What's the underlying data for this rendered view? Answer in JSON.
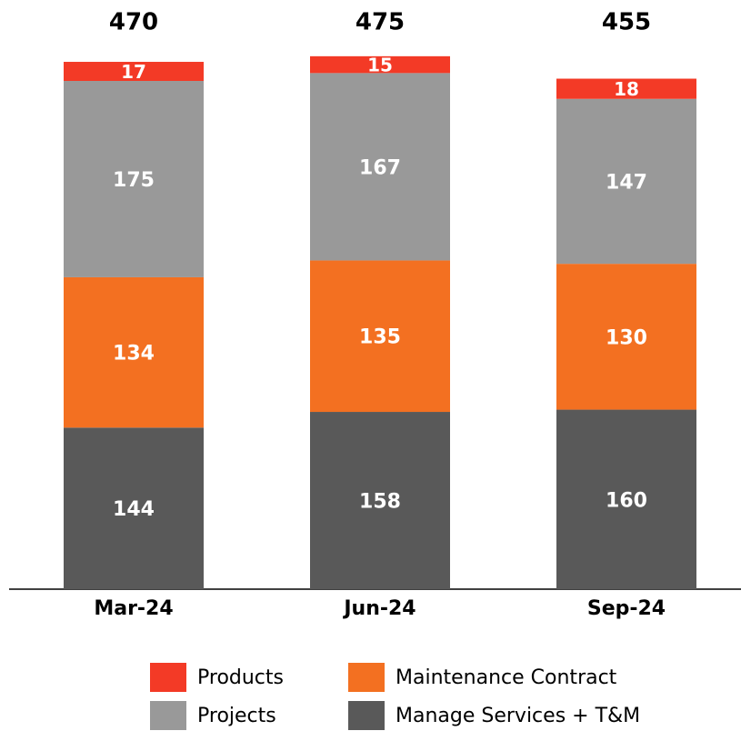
{
  "chart_data": {
    "type": "stacked_bar",
    "categories": [
      "Mar-24",
      "Jun-24",
      "Sep-24"
    ],
    "totals": [
      470,
      475,
      455
    ],
    "series": [
      {
        "name": "Manage Services + T&M",
        "color": "#595959",
        "values": [
          144,
          158,
          160
        ]
      },
      {
        "name": "Maintenance Contract",
        "color": "#f37021",
        "values": [
          134,
          135,
          130
        ]
      },
      {
        "name": "Projects",
        "color": "#999999",
        "values": [
          175,
          167,
          147
        ]
      },
      {
        "name": "Products",
        "color": "#f33a26",
        "values": [
          17,
          15,
          18
        ]
      }
    ]
  }
}
